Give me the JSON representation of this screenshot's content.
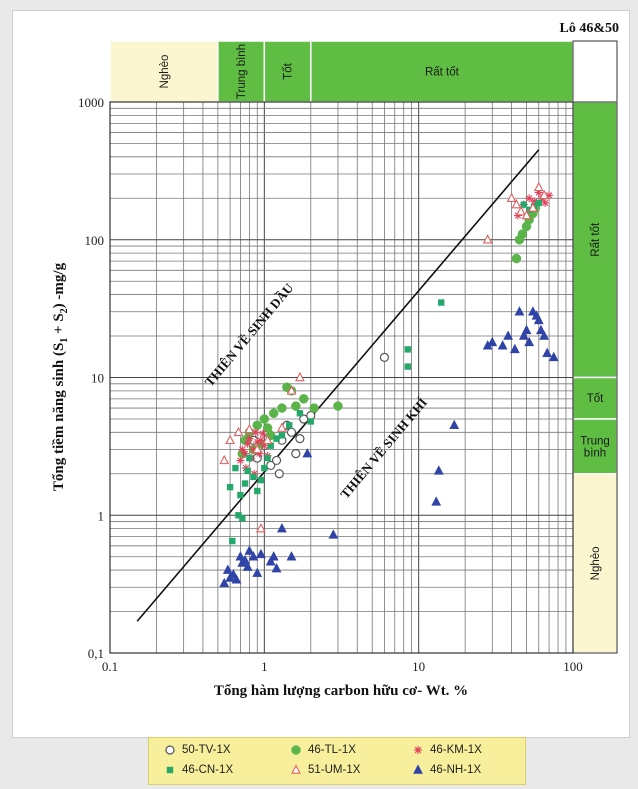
{
  "chart_data": {
    "type": "scatter",
    "title": "Lô 46&50",
    "xlabel": "Tổng hàm lượng carbon hữu cơ- Wt. %",
    "ylabel_parts": [
      "Tổng tiềm năng sinh (S",
      "1",
      " + S",
      "2",
      ") -mg/g"
    ],
    "x_scale": "log",
    "y_scale": "log",
    "xlim": [
      0.1,
      100
    ],
    "ylim": [
      0.1,
      1000
    ],
    "x_ticks": [
      "0.1",
      "1",
      "10",
      "100"
    ],
    "y_ticks": [
      "1000",
      "100",
      "10",
      "1",
      "0,1"
    ],
    "grid": true,
    "top_bands": [
      {
        "label": "Nghèo",
        "range": [
          0.1,
          0.5
        ],
        "color": "#fbf5d0"
      },
      {
        "label": "Trung bình",
        "range": [
          0.5,
          1.0
        ],
        "color": "#5ebd42"
      },
      {
        "label": "Tốt",
        "range": [
          1.0,
          2.0
        ],
        "color": "#5ebd42"
      },
      {
        "label": "Rất tốt",
        "range": [
          2.0,
          100
        ],
        "color": "#5ebd42"
      }
    ],
    "right_bands": [
      {
        "label": "Rất tốt",
        "range": [
          10,
          1000
        ],
        "color": "#5ebd42"
      },
      {
        "label": "Tốt",
        "range": [
          5,
          10
        ],
        "color": "#5ebd42"
      },
      {
        "label": "Trung bình",
        "range": [
          2,
          5
        ],
        "color": "#5ebd42"
      },
      {
        "label": "Nghèo",
        "range": [
          0.1,
          2
        ],
        "color": "#fbf5d0"
      }
    ],
    "divider_line": {
      "x": [
        0.15,
        60
      ],
      "y": [
        0.17,
        450
      ]
    },
    "annotations": [
      {
        "text": "THIÊN VỀ SINH DẦU",
        "x": 0.45,
        "y": 8.5,
        "angle": -50
      },
      {
        "text": "THIÊN VỀ SINH KHÍ",
        "x": 3.4,
        "y": 1.3,
        "angle": -50
      }
    ],
    "series": [
      {
        "name": "50-TV-1X",
        "marker": "circle-open",
        "color": "#555555",
        "points": [
          [
            0.85,
            3.5
          ],
          [
            0.9,
            2.6
          ],
          [
            1.0,
            3.2
          ],
          [
            1.05,
            4.0
          ],
          [
            1.1,
            2.3
          ],
          [
            1.2,
            2.5
          ],
          [
            1.25,
            2.0
          ],
          [
            1.3,
            3.5
          ],
          [
            1.4,
            4.5
          ],
          [
            1.5,
            4.0
          ],
          [
            1.6,
            2.8
          ],
          [
            1.7,
            3.6
          ],
          [
            1.8,
            5.0
          ],
          [
            2.0,
            5.3
          ],
          [
            6.0,
            14
          ]
        ]
      },
      {
        "name": "46-TL-1X",
        "marker": "circle-filled",
        "color": "#5ab44a",
        "points": [
          [
            0.75,
            3.5
          ],
          [
            0.8,
            4.0
          ],
          [
            0.85,
            3.0
          ],
          [
            0.9,
            4.5
          ],
          [
            0.95,
            3.3
          ],
          [
            1.0,
            5.0
          ],
          [
            1.05,
            4.3
          ],
          [
            1.1,
            3.8
          ],
          [
            1.15,
            5.5
          ],
          [
            1.3,
            6.0
          ],
          [
            1.4,
            8.5
          ],
          [
            1.5,
            8.0
          ],
          [
            1.6,
            6.2
          ],
          [
            1.8,
            7.0
          ],
          [
            2.1,
            6.0
          ],
          [
            3.0,
            6.2
          ],
          [
            0.72,
            2.8
          ],
          [
            0.78,
            3.6
          ],
          [
            43,
            73
          ],
          [
            45,
            100
          ],
          [
            47,
            110
          ],
          [
            50,
            125
          ],
          [
            52,
            140
          ],
          [
            55,
            155
          ],
          [
            57,
            170
          ]
        ]
      },
      {
        "name": "46-KM-1X",
        "marker": "star",
        "color": "#e0405a",
        "points": [
          [
            0.7,
            2.5
          ],
          [
            0.72,
            3.0
          ],
          [
            0.75,
            2.8
          ],
          [
            0.78,
            3.3
          ],
          [
            0.8,
            3.6
          ],
          [
            0.82,
            2.6
          ],
          [
            0.85,
            3.0
          ],
          [
            0.88,
            4.0
          ],
          [
            0.9,
            3.4
          ],
          [
            0.93,
            2.8
          ],
          [
            0.95,
            3.5
          ],
          [
            0.98,
            3.9
          ],
          [
            1.0,
            3.2
          ],
          [
            1.05,
            2.7
          ],
          [
            0.76,
            2.2
          ],
          [
            0.86,
            2.0
          ],
          [
            44,
            150
          ],
          [
            48,
            180
          ],
          [
            52,
            200
          ],
          [
            56,
            190
          ],
          [
            60,
            220
          ],
          [
            63,
            200
          ],
          [
            66,
            185
          ],
          [
            70,
            210
          ]
        ]
      },
      {
        "name": "46-CN-1X",
        "marker": "square",
        "color": "#27a86b",
        "points": [
          [
            0.6,
            1.6
          ],
          [
            0.62,
            0.65
          ],
          [
            0.65,
            2.2
          ],
          [
            0.68,
            1.0
          ],
          [
            0.7,
            1.4
          ],
          [
            0.72,
            0.95
          ],
          [
            0.75,
            1.7
          ],
          [
            0.78,
            2.1
          ],
          [
            0.8,
            2.6
          ],
          [
            0.85,
            1.9
          ],
          [
            0.9,
            1.5
          ],
          [
            0.95,
            1.8
          ],
          [
            1.0,
            2.2
          ],
          [
            1.05,
            2.6
          ],
          [
            1.1,
            3.2
          ],
          [
            1.2,
            3.6
          ],
          [
            1.3,
            3.8
          ],
          [
            1.45,
            4.5
          ],
          [
            1.7,
            5.5
          ],
          [
            2.0,
            4.8
          ],
          [
            14,
            35
          ],
          [
            8.5,
            16
          ],
          [
            8.5,
            12
          ],
          [
            48,
            180
          ],
          [
            52,
            165
          ],
          [
            56,
            175
          ],
          [
            60,
            185
          ]
        ]
      },
      {
        "name": "51-UM-1X",
        "marker": "triangle-open",
        "color": "#e06060",
        "points": [
          [
            0.55,
            2.5
          ],
          [
            0.6,
            3.5
          ],
          [
            0.68,
            4.0
          ],
          [
            0.8,
            4.2
          ],
          [
            0.9,
            3.0
          ],
          [
            0.95,
            0.8
          ],
          [
            1.05,
            3.5
          ],
          [
            1.3,
            4.3
          ],
          [
            1.7,
            10
          ],
          [
            1.5,
            8.0
          ],
          [
            28,
            100
          ],
          [
            40,
            200
          ],
          [
            43,
            180
          ],
          [
            46,
            160
          ],
          [
            50,
            150
          ],
          [
            55,
            170
          ],
          [
            60,
            240
          ],
          [
            65,
            210
          ]
        ]
      },
      {
        "name": "46-NH-1X",
        "marker": "triangle-filled",
        "color": "#3044a8",
        "points": [
          [
            0.55,
            0.32
          ],
          [
            0.58,
            0.4
          ],
          [
            0.6,
            0.35
          ],
          [
            0.63,
            0.37
          ],
          [
            0.66,
            0.34
          ],
          [
            0.7,
            0.5
          ],
          [
            0.72,
            0.45
          ],
          [
            0.75,
            0.47
          ],
          [
            0.78,
            0.42
          ],
          [
            0.8,
            0.55
          ],
          [
            0.85,
            0.5
          ],
          [
            0.9,
            0.38
          ],
          [
            0.95,
            0.52
          ],
          [
            1.1,
            0.46
          ],
          [
            1.15,
            0.5
          ],
          [
            1.2,
            0.41
          ],
          [
            1.3,
            0.8
          ],
          [
            1.5,
            0.5
          ],
          [
            1.9,
            2.8
          ],
          [
            2.8,
            0.72
          ],
          [
            13,
            1.25
          ],
          [
            13.5,
            2.1
          ],
          [
            17,
            4.5
          ],
          [
            28,
            17
          ],
          [
            30,
            18
          ],
          [
            35,
            17
          ],
          [
            38,
            20
          ],
          [
            42,
            16
          ],
          [
            45,
            30
          ],
          [
            48,
            20
          ],
          [
            50,
            22
          ],
          [
            52,
            18
          ],
          [
            55,
            30
          ],
          [
            58,
            28
          ],
          [
            60,
            26
          ],
          [
            62,
            22
          ],
          [
            65,
            20
          ],
          [
            68,
            15
          ],
          [
            75,
            14
          ]
        ]
      }
    ]
  }
}
